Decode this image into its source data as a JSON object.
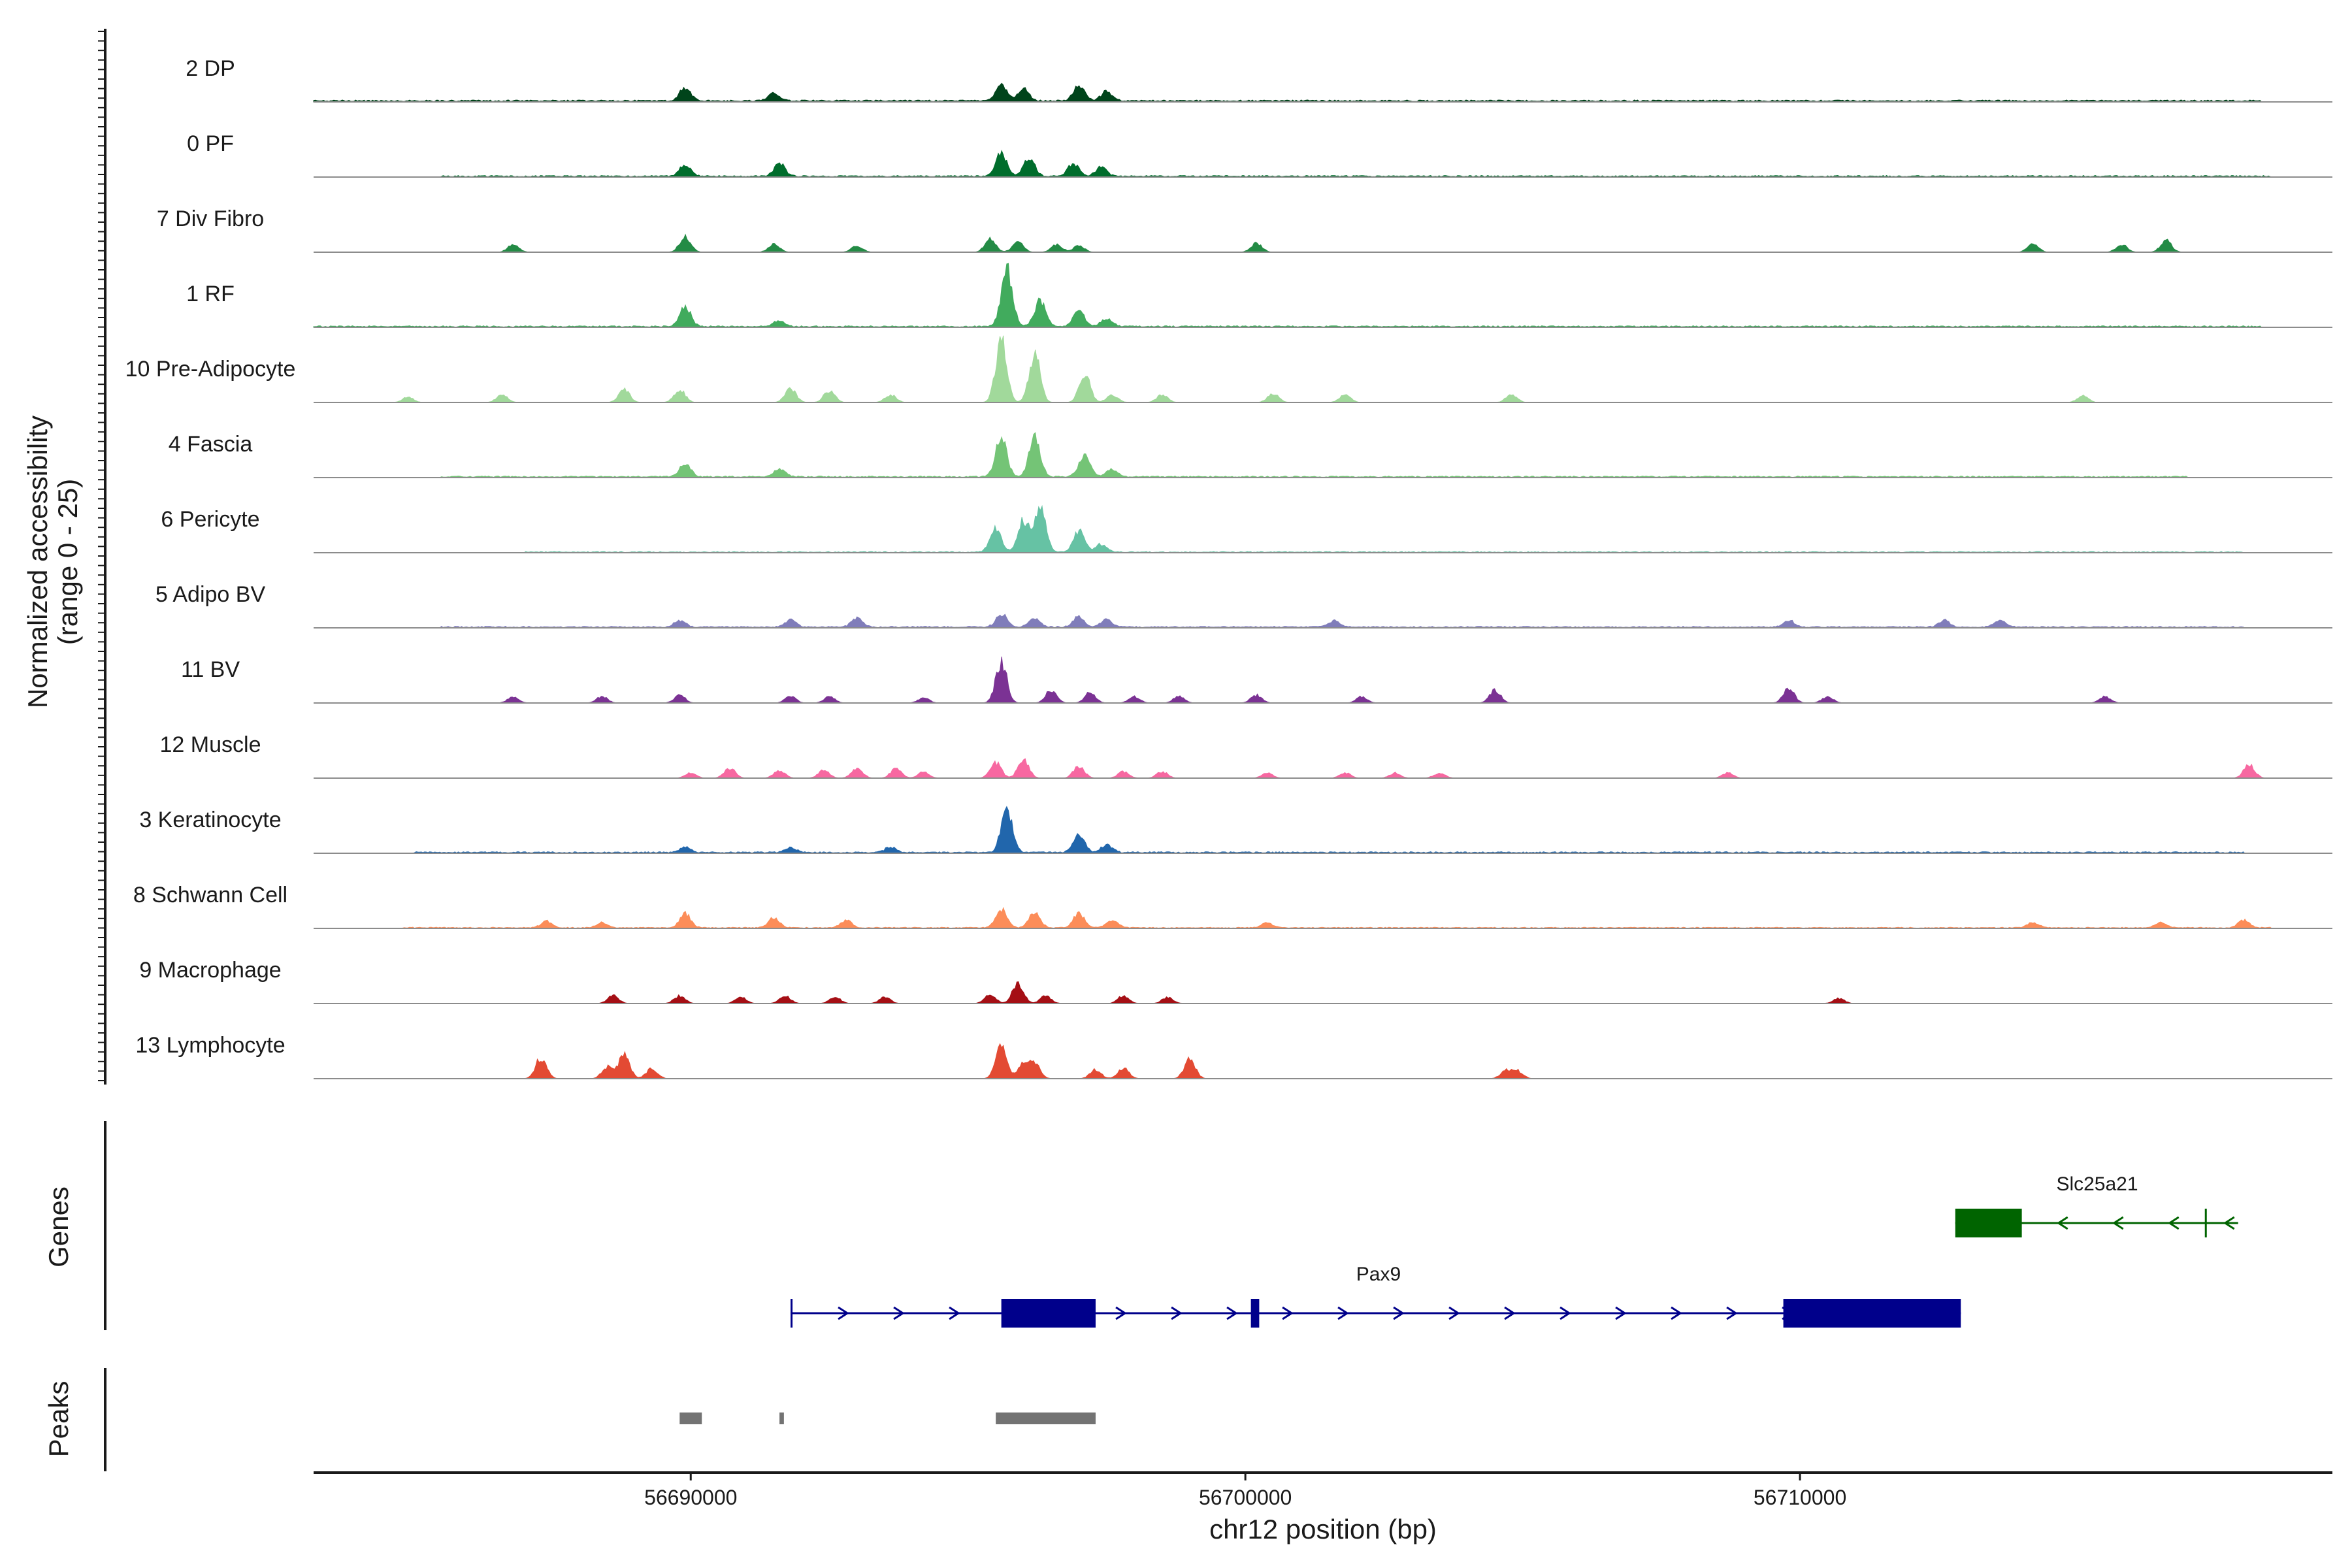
{
  "chart_data": {
    "type": "area",
    "title": "",
    "ylabel_line1": "Normalized accessibility",
    "ylabel_line2": "(range 0 - 25)",
    "ylim": [
      0,
      25
    ],
    "xlabel": "chr12 position (bp)",
    "xlim": [
      56683200,
      56719600
    ],
    "x_ticks": [
      56690000,
      56700000,
      56710000
    ],
    "x_tick_labels": [
      "56690000",
      "56700000",
      "56710000"
    ],
    "panel_labels": {
      "genes": "Genes",
      "peaks": "Peaks"
    },
    "tracks": [
      {
        "label": "2 DP",
        "color": "#00441b",
        "bg": 0.5,
        "span": [
          56683200,
          56718300
        ],
        "peaks": [
          [
            56689900,
            5.0
          ],
          [
            56691500,
            3.0
          ],
          [
            56695600,
            6.5
          ],
          [
            56696000,
            4.5
          ],
          [
            56697000,
            6.0
          ],
          [
            56697500,
            3.5
          ]
        ]
      },
      {
        "label": "0 PF",
        "color": "#006d2c",
        "bg": 0.4,
        "span": [
          56685500,
          56718500
        ],
        "peaks": [
          [
            56689900,
            4.5
          ],
          [
            56691600,
            5.0
          ],
          [
            56695600,
            9.0
          ],
          [
            56696100,
            7.0
          ],
          [
            56696900,
            5.0
          ],
          [
            56697400,
            3.5
          ]
        ]
      },
      {
        "label": "7 Div Fibro",
        "color": "#238b45",
        "bg": 0.0,
        "span": [
          56686900,
          56716600
        ],
        "peaks": [
          [
            56686800,
            3.0
          ],
          [
            56689900,
            6.0
          ],
          [
            56691500,
            3.0
          ],
          [
            56693000,
            2.5
          ],
          [
            56695400,
            5.0
          ],
          [
            56695900,
            4.0
          ],
          [
            56696600,
            3.0
          ],
          [
            56697000,
            2.5
          ],
          [
            56700200,
            3.5
          ],
          [
            56714200,
            3.0
          ],
          [
            56715800,
            3.0
          ],
          [
            56716600,
            4.5
          ]
        ]
      },
      {
        "label": "1 RF",
        "color": "#41ab5d",
        "bg": 0.4,
        "span": [
          56683200,
          56718300
        ],
        "peaks": [
          [
            56689900,
            8.0
          ],
          [
            56691600,
            2.5
          ],
          [
            56695700,
            23.0
          ],
          [
            56696300,
            10.0
          ],
          [
            56697000,
            6.0
          ],
          [
            56697500,
            3.0
          ]
        ]
      },
      {
        "label": "10 Pre-Adipocyte",
        "color": "#a1d99b",
        "bg": 0.0,
        "span": [
          56684800,
          56715900
        ],
        "peaks": [
          [
            56684900,
            2.0
          ],
          [
            56686600,
            3.0
          ],
          [
            56688800,
            5.0
          ],
          [
            56689800,
            5.0
          ],
          [
            56691800,
            5.5
          ],
          [
            56692500,
            4.5
          ],
          [
            56693600,
            3.0
          ],
          [
            56695600,
            24.0
          ],
          [
            56696200,
            19.0
          ],
          [
            56697100,
            11.0
          ],
          [
            56697600,
            3.0
          ],
          [
            56698500,
            3.0
          ],
          [
            56700500,
            3.5
          ],
          [
            56701800,
            3.0
          ],
          [
            56704800,
            3.0
          ],
          [
            56715100,
            2.5
          ]
        ]
      },
      {
        "label": "4 Fascia",
        "color": "#74c476",
        "bg": 0.4,
        "span": [
          56685500,
          56717000
        ],
        "peaks": [
          [
            56689900,
            5.0
          ],
          [
            56691600,
            3.0
          ],
          [
            56695600,
            16.0
          ],
          [
            56696200,
            15.0
          ],
          [
            56697100,
            9.0
          ],
          [
            56697600,
            3.0
          ]
        ]
      },
      {
        "label": "6 Pericyte",
        "color": "#66c2a4",
        "bg": 0.3,
        "span": [
          56687000,
          56718000
        ],
        "peaks": [
          [
            56695500,
            9.0
          ],
          [
            56696000,
            12.0
          ],
          [
            56696300,
            19.0
          ],
          [
            56697000,
            8.0
          ],
          [
            56697400,
            3.0
          ]
        ]
      },
      {
        "label": "5 Adipo BV",
        "color": "#807dba",
        "bg": 0.4,
        "span": [
          56685500,
          56718000
        ],
        "peaks": [
          [
            56689800,
            2.5
          ],
          [
            56691800,
            3.0
          ],
          [
            56693000,
            3.5
          ],
          [
            56695600,
            5.0
          ],
          [
            56696200,
            3.5
          ],
          [
            56697000,
            4.0
          ],
          [
            56697500,
            3.0
          ],
          [
            56701600,
            2.5
          ],
          [
            56709800,
            2.5
          ],
          [
            56712600,
            2.5
          ],
          [
            56713600,
            2.5
          ]
        ]
      },
      {
        "label": "11 BV",
        "color": "#7b3294",
        "bg": 0.0,
        "span": [
          56686800,
          56715600
        ],
        "peaks": [
          [
            56686800,
            2.5
          ],
          [
            56688400,
            2.5
          ],
          [
            56689800,
            3.0
          ],
          [
            56691800,
            2.5
          ],
          [
            56692500,
            2.5
          ],
          [
            56694200,
            2.0
          ],
          [
            56695600,
            16.0
          ],
          [
            56696500,
            5.0
          ],
          [
            56697200,
            4.0
          ],
          [
            56698000,
            2.5
          ],
          [
            56698800,
            2.5
          ],
          [
            56700200,
            3.0
          ],
          [
            56702100,
            2.5
          ],
          [
            56704500,
            5.0
          ],
          [
            56709800,
            5.5
          ],
          [
            56710500,
            2.5
          ],
          [
            56715500,
            2.5
          ]
        ]
      },
      {
        "label": "12 Muscle",
        "color": "#f768a1",
        "bg": 0.0,
        "span": [
          56689800,
          56718200
        ],
        "peaks": [
          [
            56690000,
            2.0
          ],
          [
            56690700,
            4.0
          ],
          [
            56691600,
            3.0
          ],
          [
            56692400,
            3.0
          ],
          [
            56693000,
            4.0
          ],
          [
            56693700,
            3.5
          ],
          [
            56694200,
            2.5
          ],
          [
            56695500,
            6.0
          ],
          [
            56696000,
            7.0
          ],
          [
            56697000,
            4.5
          ],
          [
            56697800,
            2.5
          ],
          [
            56698500,
            2.5
          ],
          [
            56700400,
            2.0
          ],
          [
            56701800,
            2.0
          ],
          [
            56702700,
            2.0
          ],
          [
            56703500,
            2.0
          ],
          [
            56708700,
            2.0
          ],
          [
            56718100,
            5.0
          ]
        ]
      },
      {
        "label": "3 Keratinocyte",
        "color": "#2166ac",
        "bg": 0.4,
        "span": [
          56685000,
          56718000
        ],
        "peaks": [
          [
            56689900,
            2.0
          ],
          [
            56691800,
            2.0
          ],
          [
            56693600,
            2.0
          ],
          [
            56695700,
            17.0
          ],
          [
            56697000,
            7.0
          ],
          [
            56697500,
            3.0
          ]
        ]
      },
      {
        "label": "8 Schwann Cell",
        "color": "#fc8d59",
        "bg": 0.3,
        "span": [
          56684800,
          56718500
        ],
        "peaks": [
          [
            56687400,
            2.5
          ],
          [
            56688400,
            2.0
          ],
          [
            56689900,
            5.5
          ],
          [
            56691500,
            4.0
          ],
          [
            56692800,
            3.0
          ],
          [
            56695600,
            7.0
          ],
          [
            56696200,
            6.0
          ],
          [
            56697000,
            5.5
          ],
          [
            56697600,
            3.0
          ],
          [
            56700400,
            2.0
          ],
          [
            56714200,
            2.0
          ],
          [
            56716500,
            2.0
          ],
          [
            56718000,
            3.0
          ]
        ]
      },
      {
        "label": "9 Macrophage",
        "color": "#a50f15",
        "bg": 0.0,
        "span": [
          56688600,
          56710800
        ],
        "peaks": [
          [
            56688600,
            3.0
          ],
          [
            56689800,
            3.0
          ],
          [
            56690900,
            2.5
          ],
          [
            56691700,
            3.0
          ],
          [
            56692600,
            2.5
          ],
          [
            56693500,
            2.5
          ],
          [
            56695400,
            3.5
          ],
          [
            56695900,
            8.0
          ],
          [
            56696400,
            3.0
          ],
          [
            56697800,
            3.0
          ],
          [
            56698600,
            2.5
          ],
          [
            56710700,
            2.0
          ]
        ]
      },
      {
        "label": "13 Lymphocyte",
        "color": "#e34a33",
        "bg": 0.0,
        "span": [
          56687300,
          56705000
        ],
        "peaks": [
          [
            56687300,
            8.0
          ],
          [
            56688500,
            4.5
          ],
          [
            56688800,
            9.0
          ],
          [
            56689300,
            4.0
          ],
          [
            56695600,
            12.0
          ],
          [
            56696000,
            5.5
          ],
          [
            56696200,
            6.0
          ],
          [
            56697300,
            3.5
          ],
          [
            56697800,
            4.0
          ],
          [
            56699000,
            7.5
          ],
          [
            56704700,
            3.0
          ],
          [
            56704900,
            3.0
          ]
        ]
      }
    ],
    "genes": [
      {
        "name": "Slc25a21",
        "strand": "-",
        "color": "#006400",
        "start": 56712800,
        "end": 56717900,
        "exons": [
          [
            56712800,
            56714000
          ],
          [
            56717300,
            56717320
          ]
        ]
      },
      {
        "name": "Pax9",
        "strand": "+",
        "color": "#00008b",
        "start": 56691800,
        "end": 56712900,
        "exons": [
          [
            56691800,
            56691830
          ],
          [
            56695600,
            56697300
          ],
          [
            56700100,
            56700250
          ],
          [
            56709700,
            56712900
          ]
        ]
      }
    ],
    "peak_regions": [
      [
        56689800,
        56690200
      ],
      [
        56691600,
        56691680
      ],
      [
        56695500,
        56697300
      ]
    ]
  }
}
